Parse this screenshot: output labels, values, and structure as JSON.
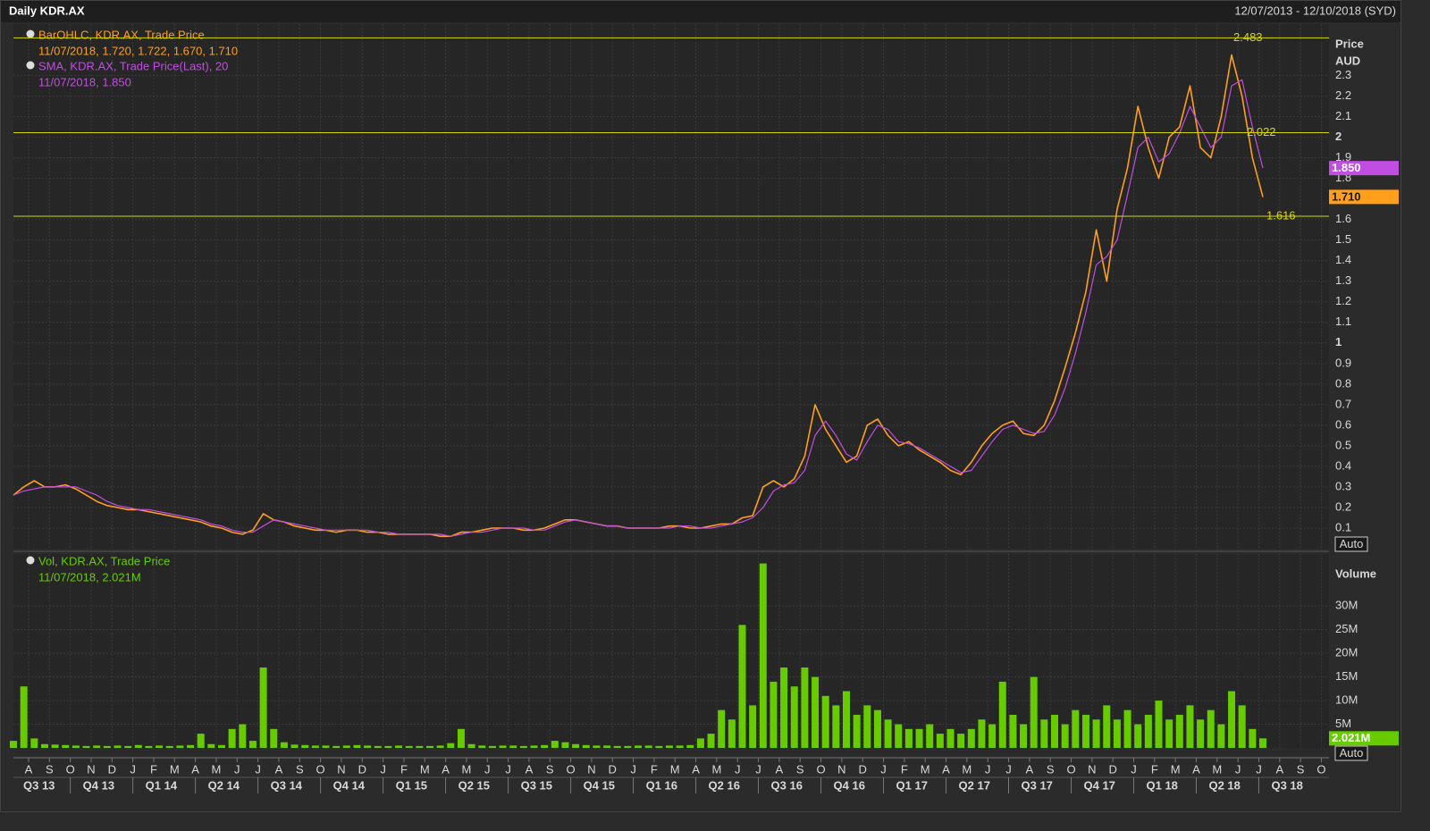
{
  "header": {
    "title": "Daily KDR.AX",
    "range": "12/07/2013 - 12/10/2018 (SYD)"
  },
  "x_axis": {
    "months": [
      "A",
      "S",
      "O",
      "N",
      "D",
      "J",
      "F",
      "M",
      "A",
      "M",
      "J",
      "J",
      "A",
      "S",
      "O",
      "N",
      "D",
      "J",
      "F",
      "M",
      "A",
      "M",
      "J",
      "J",
      "A",
      "S",
      "O",
      "N",
      "D",
      "J",
      "F",
      "M",
      "A",
      "M",
      "J",
      "J",
      "A",
      "S",
      "O",
      "N",
      "D",
      "J",
      "F",
      "M",
      "A",
      "M",
      "J",
      "J",
      "A",
      "S",
      "O",
      "N",
      "D",
      "J",
      "F",
      "M",
      "A",
      "M",
      "J",
      "J",
      "A",
      "S",
      "O"
    ],
    "quarters": [
      "Q3 13",
      "Q4 13",
      "Q1 14",
      "Q2 14",
      "Q3 14",
      "Q4 14",
      "Q1 15",
      "Q2 15",
      "Q3 15",
      "Q4 15",
      "Q1 16",
      "Q2 16",
      "Q3 16",
      "Q4 16",
      "Q1 17",
      "Q2 17",
      "Q3 17",
      "Q4 17",
      "Q1 18",
      "Q2 18",
      "Q3 18"
    ]
  },
  "chart_data": [
    {
      "type": "line",
      "y_label": "Price",
      "y_unit": "AUD",
      "auto_label": "Auto",
      "ylim": [
        0,
        2.55
      ],
      "yticks": [
        0.1,
        0.2,
        0.3,
        0.4,
        0.5,
        0.6,
        0.7,
        0.8,
        0.9,
        1,
        1.1,
        1.2,
        1.3,
        1.4,
        1.5,
        1.6,
        1.8,
        1.9,
        2,
        2.1,
        2.2,
        2.3
      ],
      "grid": true,
      "levels": [
        2.483,
        2.022,
        1.616
      ],
      "level_color": "#d8d800",
      "series": [
        {
          "name": "BarOHLC, KDR.AX, Trade Price",
          "detail": "11/07/2018, 1.720, 1.722, 1.670, 1.710",
          "color": "#ff9f1c",
          "values": [
            0.26,
            0.3,
            0.33,
            0.3,
            0.3,
            0.31,
            0.29,
            0.26,
            0.23,
            0.21,
            0.2,
            0.19,
            0.19,
            0.18,
            0.17,
            0.16,
            0.15,
            0.14,
            0.13,
            0.11,
            0.1,
            0.08,
            0.07,
            0.09,
            0.17,
            0.14,
            0.13,
            0.11,
            0.1,
            0.09,
            0.09,
            0.08,
            0.09,
            0.09,
            0.08,
            0.08,
            0.07,
            0.07,
            0.07,
            0.07,
            0.07,
            0.06,
            0.06,
            0.08,
            0.08,
            0.09,
            0.1,
            0.1,
            0.1,
            0.09,
            0.09,
            0.1,
            0.12,
            0.14,
            0.14,
            0.13,
            0.12,
            0.11,
            0.11,
            0.1,
            0.1,
            0.1,
            0.1,
            0.11,
            0.11,
            0.1,
            0.1,
            0.11,
            0.12,
            0.12,
            0.15,
            0.16,
            0.3,
            0.33,
            0.3,
            0.34,
            0.45,
            0.7,
            0.58,
            0.5,
            0.42,
            0.45,
            0.6,
            0.63,
            0.55,
            0.5,
            0.52,
            0.48,
            0.45,
            0.42,
            0.38,
            0.36,
            0.42,
            0.5,
            0.56,
            0.6,
            0.62,
            0.56,
            0.55,
            0.6,
            0.72,
            0.88,
            1.05,
            1.25,
            1.55,
            1.3,
            1.65,
            1.85,
            2.15,
            1.95,
            1.8,
            2.0,
            2.05,
            2.25,
            1.95,
            1.9,
            2.1,
            2.4,
            2.2,
            1.9,
            1.71
          ],
          "last_tag": {
            "value": 1.71,
            "label": "1.710"
          }
        },
        {
          "name": "SMA, KDR.AX, Trade Price(Last),  20",
          "detail": "11/07/2018, 1.850",
          "color": "#c04ee0",
          "values": [
            0.26,
            0.28,
            0.29,
            0.3,
            0.3,
            0.3,
            0.3,
            0.28,
            0.26,
            0.23,
            0.21,
            0.2,
            0.19,
            0.19,
            0.18,
            0.17,
            0.16,
            0.15,
            0.14,
            0.12,
            0.11,
            0.09,
            0.08,
            0.08,
            0.11,
            0.14,
            0.13,
            0.12,
            0.11,
            0.1,
            0.09,
            0.09,
            0.09,
            0.09,
            0.09,
            0.08,
            0.08,
            0.07,
            0.07,
            0.07,
            0.07,
            0.07,
            0.06,
            0.07,
            0.08,
            0.08,
            0.09,
            0.1,
            0.1,
            0.1,
            0.09,
            0.09,
            0.11,
            0.13,
            0.14,
            0.13,
            0.12,
            0.11,
            0.11,
            0.1,
            0.1,
            0.1,
            0.1,
            0.1,
            0.11,
            0.11,
            0.1,
            0.1,
            0.11,
            0.12,
            0.13,
            0.15,
            0.2,
            0.28,
            0.31,
            0.32,
            0.38,
            0.55,
            0.62,
            0.55,
            0.46,
            0.43,
            0.52,
            0.6,
            0.58,
            0.52,
            0.51,
            0.49,
            0.46,
            0.43,
            0.4,
            0.37,
            0.38,
            0.45,
            0.52,
            0.58,
            0.6,
            0.58,
            0.56,
            0.57,
            0.65,
            0.78,
            0.95,
            1.15,
            1.38,
            1.42,
            1.5,
            1.72,
            1.95,
            2.0,
            1.88,
            1.92,
            2.02,
            2.15,
            2.05,
            1.95,
            2.0,
            2.25,
            2.28,
            2.05,
            1.85
          ],
          "last_tag": {
            "value": 1.85,
            "label": "1.850"
          }
        }
      ]
    },
    {
      "type": "bar",
      "y_label": "Volume",
      "auto_label": "Auto",
      "ylim": [
        0,
        41000000
      ],
      "yticks": [
        {
          "value": 5000000,
          "label": "5M"
        },
        {
          "value": 10000000,
          "label": "10M"
        },
        {
          "value": 15000000,
          "label": "15M"
        },
        {
          "value": 20000000,
          "label": "20M"
        },
        {
          "value": 25000000,
          "label": "25M"
        },
        {
          "value": 30000000,
          "label": "30M"
        }
      ],
      "grid": true,
      "series": [
        {
          "name": "Vol, KDR.AX, Trade Price",
          "detail": "11/07/2018, 2.021M",
          "color": "#66cc00",
          "values": [
            1500000,
            13000000,
            2000000,
            800000,
            700000,
            600000,
            500000,
            400000,
            500000,
            400000,
            500000,
            400000,
            600000,
            400000,
            500000,
            400000,
            500000,
            600000,
            3000000,
            800000,
            600000,
            4000000,
            5000000,
            1500000,
            17000000,
            4000000,
            1200000,
            700000,
            600000,
            500000,
            500000,
            400000,
            500000,
            600000,
            500000,
            400000,
            400000,
            500000,
            400000,
            400000,
            400000,
            500000,
            1000000,
            4000000,
            800000,
            500000,
            400000,
            500000,
            500000,
            400000,
            500000,
            600000,
            1500000,
            1200000,
            800000,
            600000,
            500000,
            500000,
            400000,
            400000,
            500000,
            500000,
            400000,
            500000,
            500000,
            600000,
            2000000,
            3000000,
            8000000,
            6000000,
            26000000,
            9000000,
            39000000,
            14000000,
            17000000,
            13000000,
            17000000,
            15000000,
            11000000,
            9000000,
            12000000,
            7000000,
            9000000,
            8000000,
            6000000,
            5000000,
            4000000,
            4000000,
            5000000,
            3000000,
            4000000,
            3000000,
            4000000,
            6000000,
            5000000,
            14000000,
            7000000,
            5000000,
            15000000,
            6000000,
            7000000,
            5000000,
            8000000,
            7000000,
            6000000,
            9000000,
            6000000,
            8000000,
            5000000,
            7000000,
            10000000,
            6000000,
            7000000,
            9000000,
            6000000,
            8000000,
            5000000,
            12000000,
            9000000,
            4000000,
            2021000
          ],
          "last_tag": {
            "value": 2021000,
            "label": "2.021M"
          }
        }
      ]
    }
  ]
}
